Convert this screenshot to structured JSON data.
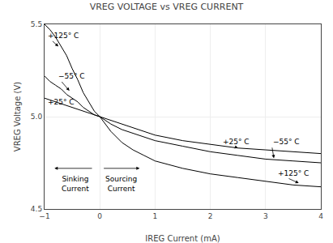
{
  "chart_data": {
    "type": "line",
    "title": "VREG VOLTAGE vs VREG CURRENT",
    "xlabel": "IREG Current (mA)",
    "ylabel": "VREG Voltage (V)",
    "xlim": [
      -1,
      4
    ],
    "ylim": [
      4.5,
      5.5
    ],
    "xticks": [
      {
        "value": -1,
        "label": "−1"
      },
      0,
      1,
      2,
      3,
      4
    ],
    "yticks": [
      4.5,
      {
        "value": 5.0,
        "label": "5.0"
      },
      5.5
    ],
    "grid": true,
    "series": [
      {
        "color": "#000000",
        "x": [
          -1.0,
          -0.9,
          -0.8,
          -0.7,
          -0.6,
          -0.5,
          -0.4,
          -0.3,
          -0.2,
          -0.1,
          0.0,
          0.1,
          0.2,
          0.4,
          0.6,
          0.8,
          1.0,
          1.5,
          2.0,
          2.5,
          3.0,
          3.5,
          4.0
        ],
        "values": [
          5.5,
          5.47,
          5.43,
          5.38,
          5.33,
          5.26,
          5.2,
          5.13,
          5.08,
          5.03,
          5.0,
          4.96,
          4.92,
          4.86,
          4.82,
          4.79,
          4.76,
          4.72,
          4.69,
          4.67,
          4.65,
          4.63,
          4.62
        ]
      },
      {
        "color": "#000000",
        "x": [
          -1.0,
          -0.9,
          -0.8,
          -0.7,
          -0.6,
          -0.5,
          -0.4,
          -0.3,
          -0.2,
          -0.1,
          0.0,
          0.1,
          0.2,
          0.4,
          0.6,
          0.8,
          1.0,
          1.5,
          2.0,
          2.5,
          3.0,
          3.5,
          4.0
        ],
        "values": [
          5.22,
          5.19,
          5.17,
          5.15,
          5.12,
          5.1,
          5.08,
          5.05,
          5.03,
          5.01,
          5.0,
          4.98,
          4.96,
          4.93,
          4.91,
          4.89,
          4.87,
          4.84,
          4.81,
          4.79,
          4.77,
          4.76,
          4.75
        ]
      },
      {
        "color": "#000000",
        "x": [
          -1.0,
          -0.9,
          -0.8,
          -0.7,
          -0.6,
          -0.5,
          -0.4,
          -0.3,
          -0.2,
          -0.1,
          0.0,
          0.1,
          0.2,
          0.4,
          0.6,
          0.8,
          1.0,
          1.5,
          2.0,
          2.5,
          3.0,
          3.5,
          4.0
        ],
        "values": [
          5.1,
          5.09,
          5.08,
          5.07,
          5.06,
          5.05,
          5.04,
          5.03,
          5.02,
          5.01,
          5.0,
          4.99,
          4.98,
          4.96,
          4.94,
          4.92,
          4.9,
          4.87,
          4.85,
          4.83,
          4.82,
          4.81,
          4.8
        ]
      }
    ],
    "annotations": [
      {
        "text": "+125° C",
        "x": -0.75,
        "y": 5.38,
        "text_x": -0.97,
        "text_y": 5.44
      },
      {
        "text": "−55° C",
        "x": -0.55,
        "y": 5.14,
        "text_x": -0.78,
        "text_y": 5.22
      },
      {
        "text": "+25° C",
        "x": -0.6,
        "y": 5.06,
        "text_x": -0.97,
        "text_y": 5.08
      },
      {
        "text": "+25° C",
        "x": 2.5,
        "y": 4.83,
        "text_x": 2.2,
        "text_y": 4.865
      },
      {
        "text": "−55° C",
        "x": 3.15,
        "y": 4.775,
        "text_x": 3.1,
        "text_y": 4.865
      },
      {
        "text": "+125° C",
        "x": 3.6,
        "y": 4.64,
        "text_x": 3.2,
        "text_y": 4.695
      },
      {
        "text": "Sinking\nCurrent",
        "x": -0.45,
        "y": 4.695
      },
      {
        "text": "Sourcing\nCurrent",
        "x": 0.38,
        "y": 4.695
      }
    ],
    "arrows": [
      {
        "x": -0.82,
        "y": 4.72,
        "from_x": -0.12,
        "from_y": 4.72
      },
      {
        "x": 0.72,
        "y": 4.72,
        "from_x": 0.05,
        "from_y": 4.72
      }
    ]
  }
}
